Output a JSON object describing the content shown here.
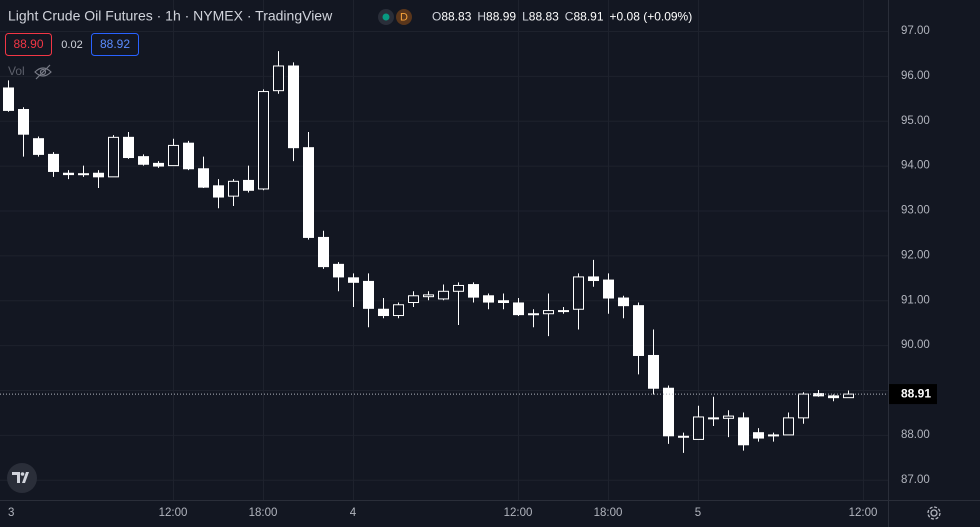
{
  "chart_data": {
    "type": "candlestick",
    "title": "Light Crude Oil Futures · 1h · NYMEX · TradingView",
    "badge": "D",
    "ohlc_header": [
      {
        "label": "O",
        "value": 88.83
      },
      {
        "label": "H",
        "value": 88.99
      },
      {
        "label": "L",
        "value": 88.83
      },
      {
        "label": "C",
        "value": 88.91
      }
    ],
    "change": "+0.08 (+0.09%)",
    "bid": "88.90",
    "spread": "0.02",
    "ask": "88.92",
    "volume_label": "Vol",
    "last_price": 88.91,
    "categories": [
      "3",
      null,
      null,
      null,
      null,
      null,
      null,
      null,
      null,
      null,
      null,
      "12:00",
      null,
      null,
      null,
      null,
      null,
      "18:00",
      null,
      null,
      null,
      null,
      null,
      "4",
      null,
      null,
      null,
      null,
      null,
      null,
      null,
      null,
      null,
      null,
      "12:00",
      null,
      null,
      null,
      null,
      null,
      "18:00",
      null,
      null,
      null,
      null,
      null,
      "5",
      null,
      null,
      null,
      null,
      null,
      null,
      null,
      null,
      null,
      null,
      "12:00"
    ],
    "open": [
      95.73,
      95.25,
      94.6,
      94.25,
      93.83,
      93.82,
      93.83,
      93.75,
      94.63,
      94.2,
      94.05,
      94.0,
      94.5,
      93.93,
      93.55,
      93.32,
      93.67,
      93.48,
      95.67,
      96.22,
      94.4,
      92.4,
      91.8,
      91.5,
      91.42,
      90.8,
      90.66,
      90.95,
      91.08,
      91.03,
      91.2,
      91.35,
      91.1,
      90.99,
      90.94,
      90.7,
      90.7,
      90.75,
      90.8,
      91.52,
      91.45,
      91.05,
      90.88,
      89.77,
      89.04,
      87.97,
      87.9,
      88.38,
      88.37,
      88.38,
      88.05,
      87.98,
      88.0,
      88.38,
      88.92,
      88.87,
      88.83,
      null
    ],
    "high": [
      95.9,
      95.3,
      94.65,
      94.3,
      93.9,
      94.0,
      93.9,
      94.68,
      94.75,
      94.25,
      94.1,
      94.6,
      94.55,
      94.2,
      93.7,
      93.7,
      94.0,
      95.7,
      96.55,
      96.3,
      94.75,
      92.55,
      91.85,
      91.6,
      91.6,
      91.05,
      90.95,
      91.2,
      91.2,
      91.35,
      91.4,
      91.4,
      91.15,
      91.15,
      91.05,
      90.8,
      91.15,
      90.85,
      91.6,
      91.9,
      91.6,
      91.1,
      90.95,
      90.35,
      89.1,
      88.05,
      88.65,
      88.85,
      88.55,
      88.5,
      88.15,
      88.05,
      88.5,
      88.95,
      89.0,
      88.9,
      88.99,
      null
    ],
    "low": [
      95.2,
      94.2,
      94.2,
      93.75,
      93.7,
      93.75,
      93.5,
      93.75,
      94.15,
      94.0,
      93.95,
      94.0,
      93.9,
      93.5,
      93.05,
      93.1,
      93.4,
      93.45,
      95.6,
      94.1,
      92.35,
      91.7,
      91.2,
      90.85,
      90.4,
      90.6,
      90.6,
      90.85,
      91.0,
      91.0,
      90.45,
      90.95,
      90.8,
      90.8,
      90.65,
      90.4,
      90.2,
      90.7,
      90.35,
      91.3,
      90.7,
      90.6,
      89.35,
      88.9,
      87.8,
      87.6,
      87.9,
      88.2,
      87.95,
      87.65,
      87.85,
      87.85,
      88.0,
      88.25,
      88.85,
      88.75,
      88.83,
      null
    ],
    "close": [
      95.23,
      94.7,
      94.25,
      93.87,
      93.8,
      93.82,
      93.75,
      94.63,
      94.18,
      94.03,
      93.99,
      94.45,
      93.93,
      93.52,
      93.3,
      93.65,
      93.45,
      95.65,
      96.22,
      94.4,
      92.4,
      91.75,
      91.52,
      91.4,
      90.82,
      90.66,
      90.9,
      91.1,
      91.12,
      91.2,
      91.33,
      91.07,
      90.96,
      90.95,
      90.68,
      90.68,
      90.77,
      90.77,
      91.52,
      91.44,
      91.05,
      90.88,
      89.77,
      89.04,
      87.98,
      87.95,
      88.4,
      88.36,
      88.42,
      87.78,
      87.93,
      88.0,
      88.38,
      88.91,
      88.87,
      88.83,
      88.91,
      null
    ],
    "candle_color": "#ffffff",
    "ylim": [
      86.55,
      97.69
    ],
    "yticks": [
      {
        "value": 87,
        "label": "87.00"
      },
      {
        "value": 88,
        "label": "88.00"
      },
      {
        "value": 89,
        "label": "89.00"
      },
      {
        "value": 90,
        "label": "90.00"
      },
      {
        "value": 91,
        "label": "91.00"
      },
      {
        "value": 92,
        "label": "92.00"
      },
      {
        "value": 93,
        "label": "93.00"
      },
      {
        "value": 94,
        "label": "94.00"
      },
      {
        "value": 95,
        "label": "95.00"
      },
      {
        "value": 96,
        "label": "96.00"
      },
      {
        "value": 97,
        "label": "97.00"
      }
    ],
    "grid": true
  }
}
